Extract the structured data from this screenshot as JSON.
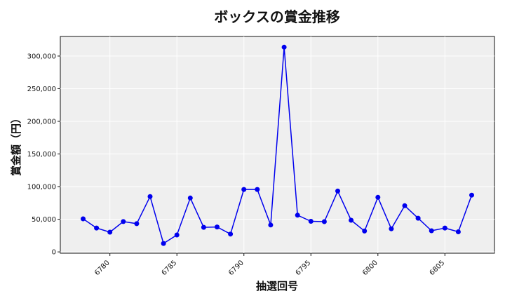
{
  "chart_data": {
    "type": "line",
    "title": "ボックスの賞金推移",
    "xlabel": "抽選回号",
    "ylabel": "賞金額（円）",
    "xlim": [
      6776.3,
      6808.7
    ],
    "ylim": [
      -2000,
      330000
    ],
    "x_ticks": [
      6780,
      6785,
      6790,
      6795,
      6800,
      6805
    ],
    "y_ticks": [
      0,
      50000,
      100000,
      150000,
      200000,
      250000,
      300000
    ],
    "y_tick_labels": [
      "0",
      "50,000",
      "100,000",
      "150,000",
      "200,000",
      "250,000",
      "300,000"
    ],
    "grid": true,
    "series": [
      {
        "color": "#0000ee",
        "x": [
          6778,
          6779,
          6780,
          6781,
          6782,
          6783,
          6784,
          6785,
          6786,
          6787,
          6788,
          6789,
          6790,
          6791,
          6792,
          6793,
          6794,
          6795,
          6796,
          6797,
          6798,
          6799,
          6800,
          6801,
          6802,
          6803,
          6804,
          6805,
          6806,
          6807
        ],
        "y": [
          50700,
          36600,
          30200,
          46500,
          43200,
          84800,
          12900,
          25900,
          82600,
          37700,
          38200,
          27300,
          95700,
          95700,
          41200,
          313600,
          56200,
          46900,
          46400,
          93200,
          48500,
          31900,
          83600,
          35400,
          70700,
          51600,
          32400,
          36600,
          30800,
          87000
        ]
      }
    ]
  }
}
